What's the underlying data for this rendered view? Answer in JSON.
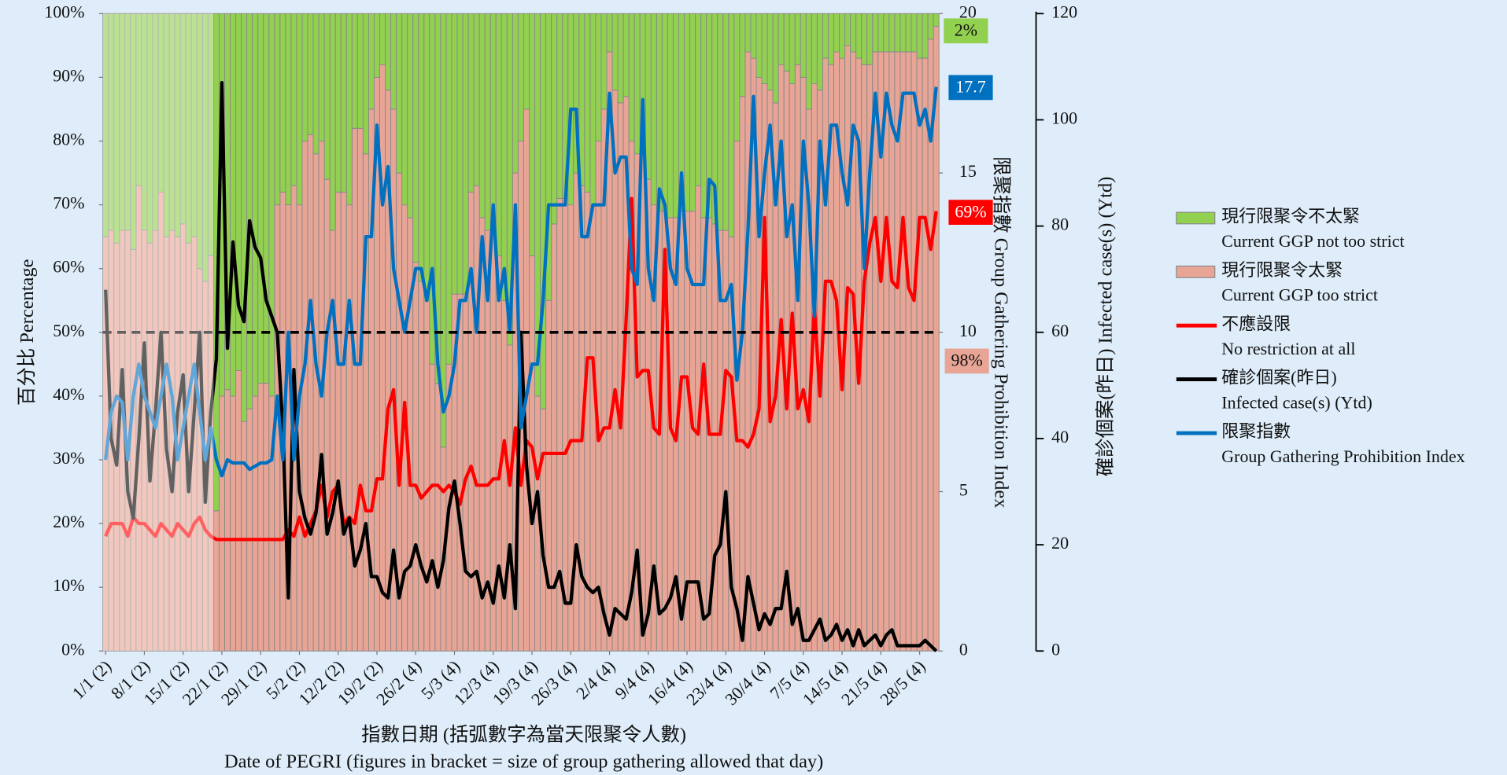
{
  "chart_data": {
    "type": "stacked-bar-lines",
    "x_title": "指數日期 (括弧數字為當天限聚令人數)",
    "x_subtitle": "Date of PEGRI (figures in bracket = size of group gathering allowed that day)",
    "y_title": "百分比 Percentage",
    "y2_title": "限聚指數 Group Gathering Prohibition Index",
    "y3_title": "確診個案(昨日) Infected case(s) (Ytd)",
    "categories": [
      "1/1 (2)",
      null,
      null,
      null,
      null,
      null,
      null,
      "8/1 (2)",
      null,
      null,
      null,
      null,
      null,
      null,
      "15/1 (2)",
      null,
      null,
      null,
      null,
      null,
      null,
      "22/1 (2)",
      null,
      null,
      null,
      null,
      null,
      null,
      "29/1 (2)",
      null,
      null,
      null,
      null,
      null,
      null,
      "5/2 (2)",
      null,
      null,
      null,
      null,
      null,
      null,
      "12/2 (2)",
      null,
      null,
      null,
      null,
      null,
      null,
      "19/2 (2)",
      null,
      null,
      null,
      null,
      null,
      null,
      "26/2 (4)",
      null,
      null,
      null,
      null,
      null,
      null,
      "5/3 (4)",
      null,
      null,
      null,
      null,
      null,
      null,
      "12/3 (4)",
      null,
      null,
      null,
      null,
      null,
      null,
      "19/3 (4)",
      null,
      null,
      null,
      null,
      null,
      null,
      "26/3 (4)",
      null,
      null,
      null,
      null,
      null,
      null,
      "2/4 (4)",
      null,
      null,
      null,
      null,
      null,
      null,
      "9/4 (4)",
      null,
      null,
      null,
      null,
      null,
      null,
      "16/4 (4)",
      null,
      null,
      null,
      null,
      null,
      null,
      "23/4 (4)",
      null,
      null,
      null,
      null,
      null,
      null,
      "30/4 (4)",
      null,
      null,
      null,
      null,
      null,
      null,
      "7/5 (4)",
      null,
      null,
      null,
      null,
      null,
      null,
      "14/5 (4)",
      null,
      null,
      null,
      null,
      null,
      null,
      "21/5 (4)",
      null,
      null,
      null,
      null,
      null,
      null,
      "28/5 (4)",
      null,
      null,
      null
    ],
    "ylim": [
      0,
      100
    ],
    "yticks": [
      {
        "value": 0,
        "label": "0%"
      },
      {
        "value": 10,
        "label": "10%"
      },
      {
        "value": 20,
        "label": "20%"
      },
      {
        "value": 30,
        "label": "30%"
      },
      {
        "value": 40,
        "label": "40%"
      },
      {
        "value": 50,
        "label": "50%"
      },
      {
        "value": 60,
        "label": "60%"
      },
      {
        "value": 70,
        "label": "70%"
      },
      {
        "value": 80,
        "label": "80%"
      },
      {
        "value": 90,
        "label": "90%"
      },
      {
        "value": 100,
        "label": "100%"
      }
    ],
    "y2lim": [
      0,
      20
    ],
    "y2ticks": [
      0,
      5,
      10,
      15,
      20
    ],
    "y3lim": [
      0,
      120
    ],
    "y3ticks": [
      0,
      20,
      40,
      60,
      80,
      100,
      120
    ],
    "reference_line": 50,
    "series": [
      {
        "name": "現行限聚令不太緊",
        "name_en": "Current GGP not too strict",
        "kind": "bar",
        "stack_on": 1,
        "color": "#92d050",
        "end_label": "2%",
        "values": [
          35,
          34,
          36,
          34,
          34,
          37,
          27,
          34,
          36,
          34,
          28,
          35,
          34,
          35,
          33,
          36,
          35,
          40,
          42,
          38,
          78,
          60,
          59,
          60,
          56,
          64,
          62,
          60,
          58,
          58,
          60,
          30,
          28,
          30,
          27,
          30,
          20,
          19,
          22,
          20,
          26,
          34,
          28,
          28,
          30,
          18,
          18,
          22,
          15,
          10,
          8,
          12,
          15,
          25,
          30,
          32,
          39,
          42,
          45,
          55,
          58,
          68,
          55,
          44,
          44,
          44,
          28,
          27,
          32,
          34,
          33,
          38,
          45,
          52,
          25,
          20,
          15,
          38,
          60,
          62,
          45,
          33,
          29,
          29,
          30,
          25,
          27,
          28,
          30,
          20,
          15,
          6,
          12,
          14,
          13,
          20,
          22,
          20,
          26,
          30,
          31,
          31,
          32,
          32,
          31,
          31,
          31,
          27,
          32,
          32,
          33,
          34,
          34,
          35,
          20,
          13,
          6,
          7,
          10,
          11,
          12,
          14,
          8,
          9,
          11,
          8,
          10,
          15,
          11,
          12,
          7,
          8,
          6,
          7,
          5,
          6,
          7,
          8,
          8,
          6,
          6,
          6,
          6,
          6,
          6,
          6,
          6,
          7,
          7,
          4,
          2
        ]
      },
      {
        "name": "現行限聚令太緊",
        "name_en": "Current GGP too strict",
        "kind": "bar",
        "color": "#e8a596",
        "end_label": "98%",
        "values": [
          65,
          66,
          64,
          66,
          66,
          63,
          73,
          66,
          64,
          66,
          72,
          65,
          66,
          65,
          67,
          64,
          65,
          60,
          58,
          62,
          22,
          40,
          41,
          40,
          44,
          36,
          38,
          40,
          42,
          42,
          40,
          70,
          72,
          70,
          73,
          70,
          80,
          81,
          78,
          80,
          74,
          66,
          72,
          72,
          70,
          82,
          82,
          78,
          85,
          90,
          92,
          88,
          85,
          75,
          70,
          68,
          61,
          58,
          55,
          45,
          42,
          32,
          45,
          56,
          56,
          56,
          72,
          73,
          68,
          66,
          67,
          62,
          55,
          48,
          75,
          80,
          85,
          62,
          40,
          38,
          55,
          67,
          71,
          71,
          70,
          75,
          73,
          72,
          70,
          80,
          85,
          94,
          88,
          86,
          87,
          80,
          78,
          80,
          74,
          70,
          69,
          69,
          68,
          68,
          69,
          69,
          69,
          73,
          68,
          68,
          67,
          66,
          66,
          65,
          80,
          87,
          94,
          93,
          90,
          89,
          88,
          86,
          92,
          91,
          89,
          92,
          90,
          85,
          89,
          88,
          93,
          92,
          94,
          93,
          95,
          94,
          93,
          92,
          92,
          94,
          94,
          94,
          94,
          94,
          94,
          94,
          94,
          93,
          93,
          96,
          98
        ]
      },
      {
        "name": "不應設限",
        "name_en": "No restriction at all",
        "kind": "line",
        "color": "#ff0000",
        "end_label": "69%",
        "values": [
          18,
          20,
          20,
          20,
          18,
          21,
          20,
          20,
          19,
          18,
          20,
          19,
          18,
          20,
          19,
          18,
          20,
          21,
          19,
          18,
          17.5,
          17.5,
          17.5,
          17.5,
          17.5,
          17.5,
          17.5,
          17.5,
          17.5,
          17.5,
          17.5,
          17.5,
          17.5,
          19,
          18,
          21,
          18,
          20,
          22,
          26,
          21,
          25,
          26,
          20,
          21,
          20,
          26,
          22,
          22,
          27,
          27,
          38,
          41,
          26,
          39,
          26,
          26,
          24,
          25,
          26,
          26,
          25,
          26,
          25,
          23,
          27,
          29,
          26,
          26,
          26,
          27,
          27,
          33,
          26,
          35,
          26,
          33,
          32,
          27,
          31,
          31,
          31,
          31,
          31,
          33,
          33,
          33,
          46,
          46,
          33,
          35,
          35,
          41,
          35,
          52,
          71,
          43,
          44,
          44,
          35,
          34,
          63,
          35,
          33,
          43,
          43,
          35,
          34,
          45,
          34,
          34,
          34,
          44,
          43,
          33,
          33,
          32,
          34,
          38,
          68,
          36,
          40,
          52,
          38,
          53,
          38,
          41,
          36,
          54,
          40,
          58,
          58,
          55,
          41,
          57,
          56,
          42,
          58,
          64,
          68,
          58,
          68,
          58,
          57,
          68,
          57,
          55,
          68,
          68,
          63,
          69
        ]
      },
      {
        "name": "確診個案(昨日)",
        "name_en": "Infected case(s) (Ytd)",
        "kind": "line",
        "axis": "y3",
        "color": "#000000",
        "values": [
          68,
          40,
          35,
          53,
          30,
          25,
          40,
          58,
          32,
          45,
          60,
          38,
          30,
          45,
          52,
          30,
          45,
          60,
          28,
          45,
          55,
          107,
          57,
          77,
          65,
          62,
          81,
          76,
          74,
          66,
          63,
          60,
          42,
          10,
          53,
          30,
          25,
          22,
          26,
          37,
          22,
          26,
          32,
          22,
          25,
          16,
          19,
          24,
          14,
          14,
          11,
          10,
          19,
          10,
          15,
          16,
          20,
          16,
          13,
          17,
          12,
          17,
          27,
          32,
          24,
          15,
          14,
          15,
          10,
          13,
          9,
          16,
          10,
          20,
          8,
          60,
          35,
          24,
          30,
          18,
          12,
          12,
          15,
          9,
          9,
          20,
          14,
          12,
          11,
          12,
          7,
          3,
          8,
          7,
          6,
          11,
          19,
          3,
          7,
          16,
          7,
          8,
          10,
          14,
          6,
          13,
          13,
          13,
          6,
          7,
          18,
          20,
          30,
          12,
          8,
          2,
          14,
          9,
          4,
          7,
          5,
          8,
          8,
          15,
          5,
          8,
          2,
          2,
          4,
          6,
          2,
          3,
          5,
          2,
          4,
          1,
          4,
          1,
          2,
          3,
          1,
          3,
          4,
          1,
          1,
          1,
          1,
          1,
          2,
          1,
          0
        ]
      },
      {
        "name": "限聚指數",
        "name_en": "Group Gathering Prohibition Index",
        "kind": "line",
        "axis": "y2",
        "color": "#0070c0",
        "end_label": "17.7",
        "values": [
          6,
          7.5,
          8,
          7.8,
          6,
          8,
          9,
          8,
          7.5,
          7,
          8,
          9,
          8,
          6,
          7,
          8,
          9,
          7.5,
          6,
          7,
          6,
          5.5,
          6,
          5.9,
          5.9,
          5.9,
          5.7,
          5.8,
          5.9,
          5.9,
          6,
          8,
          6,
          10,
          6,
          8,
          9,
          11,
          9,
          8,
          10,
          11,
          9,
          9,
          11,
          9,
          9,
          13,
          13,
          16.5,
          14,
          15.2,
          12,
          11,
          10,
          11,
          12,
          12,
          11,
          12,
          9,
          7.5,
          8,
          9,
          11,
          11,
          12,
          10,
          13,
          11,
          14,
          11,
          12,
          10,
          14,
          7,
          8,
          9,
          9,
          11,
          14,
          14,
          14,
          14,
          17,
          17,
          13,
          13,
          14,
          14,
          14,
          17.5,
          15,
          15.5,
          15.5,
          12,
          11.5,
          17.3,
          12,
          11,
          14.5,
          14,
          12,
          11.5,
          15,
          12,
          11.5,
          11.5,
          11.5,
          14.8,
          14.6,
          11,
          11,
          11.5,
          8.5,
          10,
          13.2,
          17.4,
          13,
          15,
          16.5,
          14,
          16,
          13,
          14,
          11,
          16,
          14,
          10.5,
          16,
          14,
          16.5,
          16.5,
          15,
          14,
          16.5,
          16,
          12,
          15,
          17.5,
          15.5,
          17.5,
          16.5,
          16,
          17.5,
          17.5,
          17.5,
          16.5,
          17,
          16,
          17.7
        ]
      }
    ]
  }
}
